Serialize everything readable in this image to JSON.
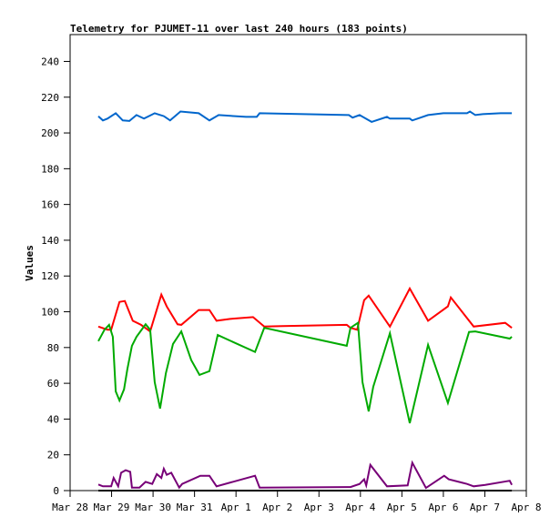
{
  "chart_data": {
    "type": "line",
    "title": "Telemetry for PJUMET-11 over last 240 hours (183 points)",
    "xlabel": "",
    "ylabel": "Values",
    "ylim": [
      0,
      255
    ],
    "x_unit": "days since Mar 28",
    "xlim": [
      0,
      11
    ],
    "x_ticks": [
      {
        "value": 0,
        "label": "Mar 28"
      },
      {
        "value": 1,
        "label": "Mar 29"
      },
      {
        "value": 2,
        "label": "Mar 30"
      },
      {
        "value": 3,
        "label": "Mar 31"
      },
      {
        "value": 4,
        "label": "Apr 1"
      },
      {
        "value": 5,
        "label": "Apr 2"
      },
      {
        "value": 6,
        "label": "Apr 3"
      },
      {
        "value": 7,
        "label": "Apr 4"
      },
      {
        "value": 8,
        "label": "Apr 5"
      },
      {
        "value": 9,
        "label": "Apr 6"
      },
      {
        "value": 10,
        "label": "Apr 7"
      },
      {
        "value": 11,
        "label": "Apr 8"
      }
    ],
    "y_ticks": [
      {
        "value": 0,
        "label": "0"
      },
      {
        "value": 20,
        "label": "20"
      },
      {
        "value": 40,
        "label": "40"
      },
      {
        "value": 60,
        "label": "60"
      },
      {
        "value": 80,
        "label": "80"
      },
      {
        "value": 100,
        "label": "100"
      },
      {
        "value": 120,
        "label": "120"
      },
      {
        "value": 140,
        "label": "140"
      },
      {
        "value": 160,
        "label": "160"
      },
      {
        "value": 180,
        "label": "180"
      },
      {
        "value": 200,
        "label": "200"
      },
      {
        "value": 220,
        "label": "220"
      },
      {
        "value": 240,
        "label": "240"
      }
    ],
    "grid": false,
    "series": [
      {
        "name": "blue",
        "color": "#0066cc",
        "x": [
          0.68,
          0.79,
          0.9,
          1.1,
          1.27,
          1.43,
          1.6,
          1.78,
          2.04,
          2.26,
          2.41,
          2.66,
          3.1,
          3.36,
          3.58,
          4.24,
          4.5,
          4.57,
          6.72,
          6.81,
          6.98,
          7.27,
          7.64,
          7.71,
          8.19,
          8.25,
          8.63,
          9.0,
          9.57,
          9.64,
          9.77,
          9.95,
          10.38,
          10.65
        ],
        "y": [
          209.3,
          207,
          208,
          211,
          207,
          206.7,
          210,
          208,
          211,
          209.4,
          207,
          212,
          211,
          207,
          210,
          209,
          209,
          211,
          210,
          208.6,
          210,
          206.2,
          209,
          208,
          208,
          207,
          210,
          211,
          211,
          212,
          210,
          210.5,
          211,
          211
        ]
      },
      {
        "name": "red",
        "color": "#ff0000",
        "x": [
          0.68,
          0.9,
          0.99,
          1.19,
          1.32,
          1.51,
          1.71,
          1.93,
          2.2,
          2.33,
          2.59,
          2.68,
          3.1,
          3.36,
          3.53,
          3.86,
          4.41,
          4.68,
          5.12,
          6.67,
          6.76,
          6.92,
          7.09,
          7.2,
          7.71,
          8.19,
          8.63,
          9.11,
          9.18,
          9.73,
          10.49,
          10.65
        ],
        "y": [
          91.7,
          90,
          90,
          105.5,
          106,
          95,
          92.7,
          89,
          109.6,
          103,
          93,
          92.7,
          101,
          101,
          95,
          96,
          97,
          91.7,
          92,
          92.7,
          91,
          90,
          106.5,
          109,
          91.7,
          113,
          95,
          103,
          108,
          91.7,
          93.8,
          91
        ]
      },
      {
        "name": "green",
        "color": "#00aa00",
        "x": [
          0.68,
          0.83,
          0.94,
          1.03,
          1.1,
          1.19,
          1.3,
          1.38,
          1.49,
          1.6,
          1.82,
          1.93,
          2.04,
          2.17,
          2.31,
          2.48,
          2.68,
          2.92,
          3.12,
          3.36,
          3.56,
          4.46,
          4.68,
          6.67,
          6.76,
          6.94,
          7.05,
          7.2,
          7.31,
          7.71,
          8.19,
          8.63,
          9.11,
          9.62,
          9.77,
          10.6,
          10.65
        ],
        "y": [
          83.6,
          90,
          92.7,
          86,
          55.5,
          50.4,
          56.6,
          68,
          81,
          86,
          93,
          90,
          60.6,
          45.9,
          65.7,
          82,
          89,
          73,
          64.7,
          66.8,
          87,
          77.5,
          91,
          81,
          91,
          93.8,
          60.6,
          44.3,
          58,
          88,
          37.7,
          81.5,
          49,
          88.7,
          89,
          85,
          86
        ]
      },
      {
        "name": "purple",
        "color": "#770077",
        "x": [
          0.68,
          0.79,
          0.99,
          1.05,
          1.16,
          1.23,
          1.34,
          1.45,
          1.49,
          1.67,
          1.82,
          1.98,
          2.09,
          2.2,
          2.26,
          2.33,
          2.44,
          2.63,
          2.7,
          3.14,
          3.36,
          3.53,
          4.46,
          4.57,
          6.76,
          6.98,
          7.09,
          7.14,
          7.24,
          7.64,
          8.14,
          8.25,
          8.58,
          9.02,
          9.13,
          9.57,
          9.73,
          10.01,
          10.6,
          10.65
        ],
        "y": [
          3.4,
          2.4,
          2.4,
          7.1,
          2.4,
          10,
          11.4,
          10.5,
          1.7,
          1.7,
          4.9,
          3.7,
          9.2,
          7.1,
          12.2,
          8.8,
          10,
          1.7,
          3.7,
          8.3,
          8.3,
          2.4,
          8.3,
          1.7,
          2,
          3.7,
          6.3,
          2.9,
          14.4,
          2.4,
          2.9,
          15.6,
          1.5,
          8.3,
          6.3,
          3.7,
          2.4,
          3.2,
          5.5,
          3.2
        ]
      },
      {
        "name": "black",
        "color": "#000000",
        "x": [
          0.68,
          10.65
        ],
        "y": [
          0,
          0
        ]
      }
    ]
  }
}
